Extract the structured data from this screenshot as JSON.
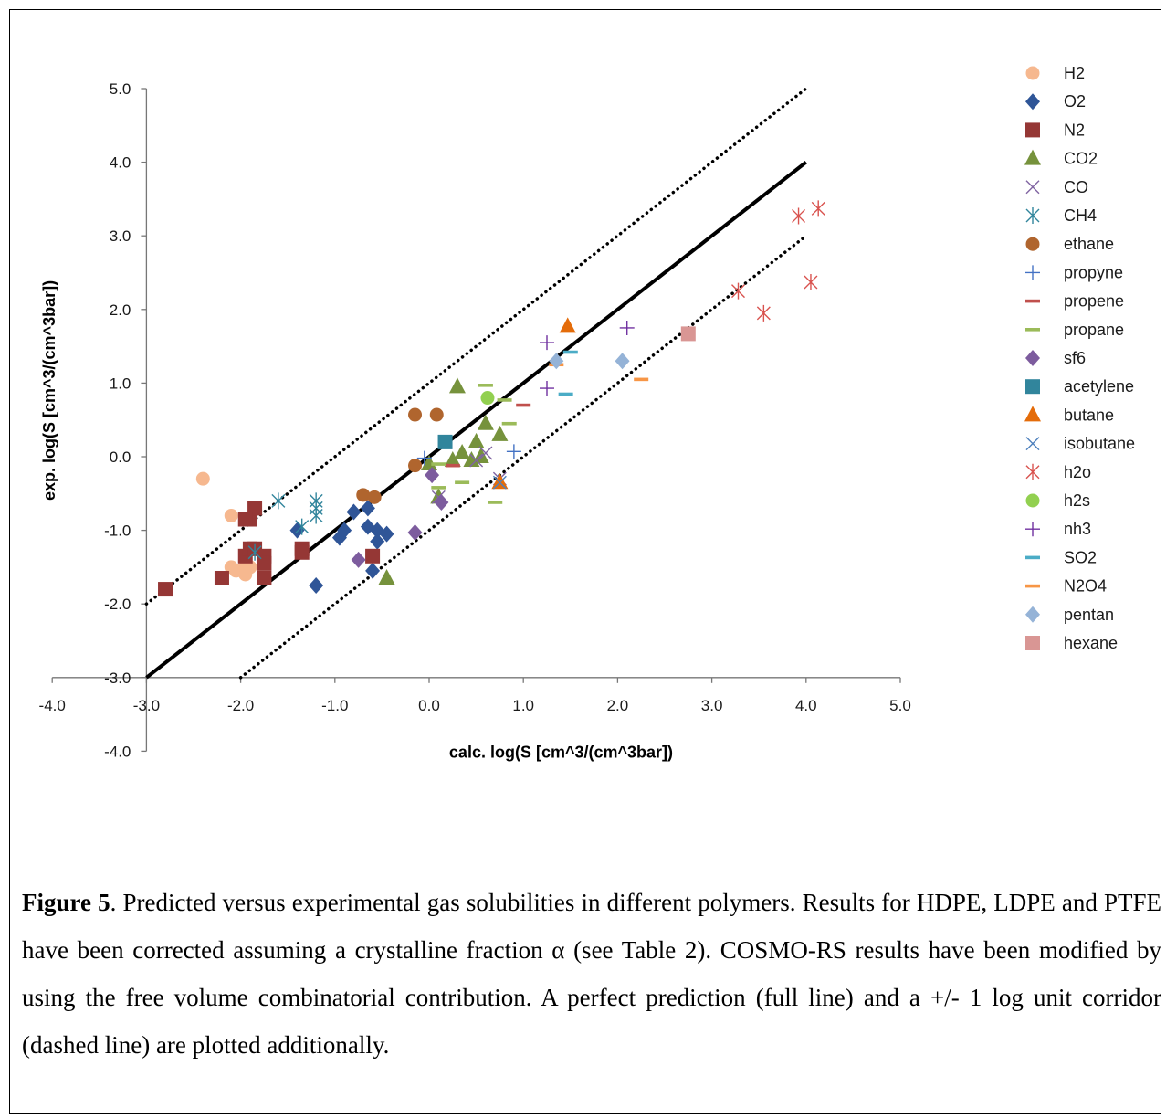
{
  "caption": {
    "label": "Figure 5",
    "text": ". Predicted versus experimental gas solubilities in different polymers. Results for HDPE, LDPE and PTFE have been corrected assuming a crystalline fraction α (see Table 2). COSMO-RS results have been modified by using the free volume combinatorial contribution. A perfect prediction (full line) and a +/- 1 log unit corridor (dashed line) are plotted additionally."
  },
  "chart_data": {
    "type": "scatter",
    "xlabel": "calc. log(S [cm^3/(cm^3bar])",
    "ylabel": "exp. log(S [cm^3/(cm^3bar])",
    "xlim": [
      -4.0,
      5.0
    ],
    "ylim": [
      -4.0,
      5.0
    ],
    "x_ticks": [
      "-4.0",
      "-3.0",
      "-2.0",
      "-1.0",
      "0.0",
      "1.0",
      "2.0",
      "3.0",
      "4.0",
      "5.0"
    ],
    "y_ticks": [
      "-4.0",
      "-3.0",
      "-2.0",
      "-1.0",
      "0.0",
      "1.0",
      "2.0",
      "3.0",
      "4.0",
      "5.0"
    ],
    "grid": false,
    "legend_position": "right",
    "reference_lines": [
      {
        "style": "solid",
        "color": "#000000",
        "x": [
          -3.0,
          4.0
        ],
        "y": [
          -3.0,
          4.0
        ]
      },
      {
        "style": "dotted",
        "color": "#000000",
        "x": [
          -3.0,
          4.0
        ],
        "y": [
          -2.0,
          5.0
        ]
      },
      {
        "style": "dotted",
        "color": "#000000",
        "x": [
          -2.0,
          4.0
        ],
        "y": [
          -3.0,
          3.0
        ]
      }
    ],
    "series": [
      {
        "name": "H2",
        "marker": "circle",
        "color": "#f6b88f",
        "x": [
          -2.4,
          -2.1,
          -2.1,
          -1.95,
          -2.05,
          -1.95,
          -1.9
        ],
        "y": [
          -0.3,
          -0.8,
          -1.5,
          -1.5,
          -1.55,
          -1.6,
          -1.5
        ]
      },
      {
        "name": "O2",
        "marker": "diamond",
        "color": "#2f5597",
        "x": [
          -0.8,
          -0.65,
          -0.9,
          -0.95,
          -1.4,
          -0.65,
          -0.55,
          -0.55,
          -0.45,
          -0.6,
          -1.2
        ],
        "y": [
          -0.75,
          -0.7,
          -1.0,
          -1.1,
          -1.0,
          -0.95,
          -1.0,
          -1.15,
          -1.05,
          -1.55,
          -1.75
        ]
      },
      {
        "name": "N2",
        "marker": "square",
        "color": "#953735",
        "x": [
          -2.8,
          -2.2,
          -1.95,
          -1.9,
          -1.9,
          -1.85,
          -1.95,
          -1.85,
          -1.75,
          -1.75,
          -1.75,
          -1.35,
          -1.35,
          -0.6
        ],
        "y": [
          -1.8,
          -1.65,
          -1.35,
          -1.25,
          -0.85,
          -0.7,
          -0.85,
          -1.25,
          -1.35,
          -1.45,
          -1.65,
          -1.25,
          -1.3,
          -1.35
        ]
      },
      {
        "name": "CO2",
        "marker": "triangle",
        "color": "#76923c",
        "x": [
          0.3,
          0.6,
          0.75,
          0.5,
          0.35,
          0.25,
          0.45,
          0.55,
          0.0,
          0.1,
          -0.45
        ],
        "y": [
          0.95,
          0.45,
          0.3,
          0.2,
          0.05,
          -0.05,
          -0.05,
          0.0,
          -0.1,
          -0.55,
          -1.65
        ]
      },
      {
        "name": "CO",
        "marker": "x",
        "color": "#8064a2",
        "x": [
          0.1,
          0.6,
          0.5,
          0.75
        ],
        "y": [
          -0.55,
          0.05,
          -0.05,
          -0.3
        ]
      },
      {
        "name": "CH4",
        "marker": "asterisk",
        "color": "#31859c",
        "x": [
          -1.6,
          -1.2,
          -1.2,
          -1.2,
          -1.35,
          -1.85
        ],
        "y": [
          -0.6,
          -0.6,
          -0.7,
          -0.8,
          -0.95,
          -1.3
        ]
      },
      {
        "name": "ethane",
        "marker": "circle",
        "color": "#b0652e",
        "x": [
          -0.15,
          0.08,
          -0.15,
          -0.7,
          -0.58
        ],
        "y": [
          0.57,
          0.57,
          -0.12,
          -0.52,
          -0.55
        ]
      },
      {
        "name": "propyne",
        "marker": "plus",
        "color": "#4472c4",
        "x": [
          -0.05,
          0.9
        ],
        "y": [
          -0.02,
          0.07
        ]
      },
      {
        "name": "propene",
        "marker": "dash",
        "color": "#c0504d",
        "x": [
          1.0,
          0.25
        ],
        "y": [
          0.7,
          -0.12
        ]
      },
      {
        "name": "propane",
        "marker": "dash",
        "color": "#9bbb59",
        "x": [
          0.6,
          0.8,
          0.85,
          0.1,
          0.1,
          0.7,
          0.35
        ],
        "y": [
          0.97,
          0.77,
          0.45,
          -0.1,
          -0.42,
          -0.62,
          -0.35
        ]
      },
      {
        "name": "sf6",
        "marker": "diamond",
        "color": "#7d5c9e",
        "x": [
          0.03,
          0.13,
          -0.15,
          -0.75
        ],
        "y": [
          -0.25,
          -0.62,
          -1.03,
          -1.4
        ]
      },
      {
        "name": "acetylene",
        "marker": "square",
        "color": "#31859c",
        "x": [
          0.17
        ],
        "y": [
          0.2
        ]
      },
      {
        "name": "butane",
        "marker": "triangle",
        "color": "#e46c0a",
        "x": [
          1.47,
          0.75
        ],
        "y": [
          1.77,
          -0.35
        ]
      },
      {
        "name": "isobutane",
        "marker": "x",
        "color": "#4f81bd",
        "x": [
          0.75
        ],
        "y": [
          -0.35
        ]
      },
      {
        "name": "h2o",
        "marker": "asterisk",
        "color": "#d9534f",
        "x": [
          4.13,
          3.92,
          3.28,
          3.55,
          4.05
        ],
        "y": [
          3.37,
          3.27,
          2.25,
          1.95,
          2.37
        ]
      },
      {
        "name": "h2s",
        "marker": "circle",
        "color": "#92d050",
        "x": [
          0.62
        ],
        "y": [
          0.8
        ]
      },
      {
        "name": "nh3",
        "marker": "plus",
        "color": "#7030a0",
        "x": [
          1.25,
          2.1,
          1.25
        ],
        "y": [
          1.55,
          1.75,
          0.93
        ]
      },
      {
        "name": "SO2",
        "marker": "dash",
        "color": "#4bacc6",
        "x": [
          1.5,
          1.45
        ],
        "y": [
          1.42,
          0.85
        ]
      },
      {
        "name": "N2O4",
        "marker": "dash",
        "color": "#f79646",
        "x": [
          2.25,
          1.35
        ],
        "y": [
          1.05,
          1.25
        ]
      },
      {
        "name": "pentan",
        "marker": "diamond",
        "color": "#95b3d7",
        "x": [
          2.05,
          1.35
        ],
        "y": [
          1.3,
          1.3
        ]
      },
      {
        "name": "hexane",
        "marker": "square",
        "color": "#d99694",
        "x": [
          2.75
        ],
        "y": [
          1.67
        ]
      }
    ]
  }
}
